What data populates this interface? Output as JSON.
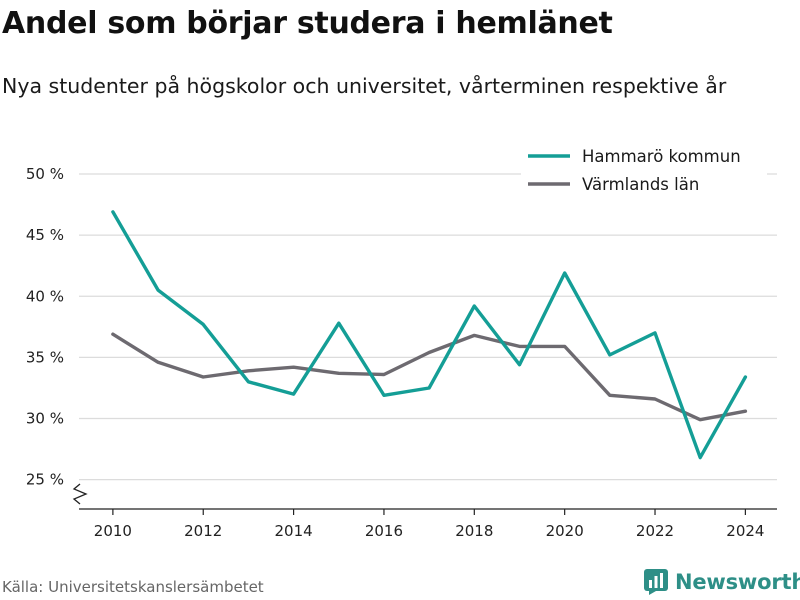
{
  "chart_data": {
    "type": "line",
    "title": "Andel som börjar studera i hemlänet",
    "subtitle": "Nya studenter på högskolor och universitet, vårterminen respektive år",
    "x": [
      2010,
      2011,
      2012,
      2013,
      2014,
      2015,
      2016,
      2017,
      2018,
      2019,
      2020,
      2021,
      2022,
      2023,
      2024
    ],
    "series": [
      {
        "name": "Hammarö kommun",
        "color": "#149e96",
        "values": [
          46.9,
          40.5,
          37.7,
          33.0,
          32.0,
          37.8,
          31.9,
          32.5,
          39.2,
          34.4,
          41.9,
          35.2,
          37.0,
          26.8,
          33.4
        ]
      },
      {
        "name": "Värmlands län",
        "color": "#6d6a70",
        "values": [
          36.9,
          34.6,
          33.4,
          33.9,
          34.2,
          33.7,
          33.6,
          35.4,
          36.8,
          35.9,
          35.9,
          31.9,
          31.6,
          29.9,
          30.6
        ]
      }
    ],
    "xticks": [
      2010,
      2012,
      2014,
      2016,
      2018,
      2020,
      2022,
      2024
    ],
    "xtick_labels": [
      "2010",
      "2012",
      "2014",
      "2016",
      "2018",
      "2020",
      "2022",
      "2024"
    ],
    "yticks": [
      25,
      30,
      35,
      40,
      45,
      50
    ],
    "ytick_labels": [
      "25 %",
      "30 %",
      "35 %",
      "40 %",
      "45 %",
      "50 %"
    ],
    "xlim": [
      2009.25,
      2024.7
    ],
    "ylim": [
      22.6,
      50
    ],
    "y_axis_break": true,
    "grid": "horizontal",
    "legend_position": "top-right"
  },
  "footer": {
    "source": "Källa: Universitetskanslersämbetet",
    "brand": "Newsworthy"
  }
}
